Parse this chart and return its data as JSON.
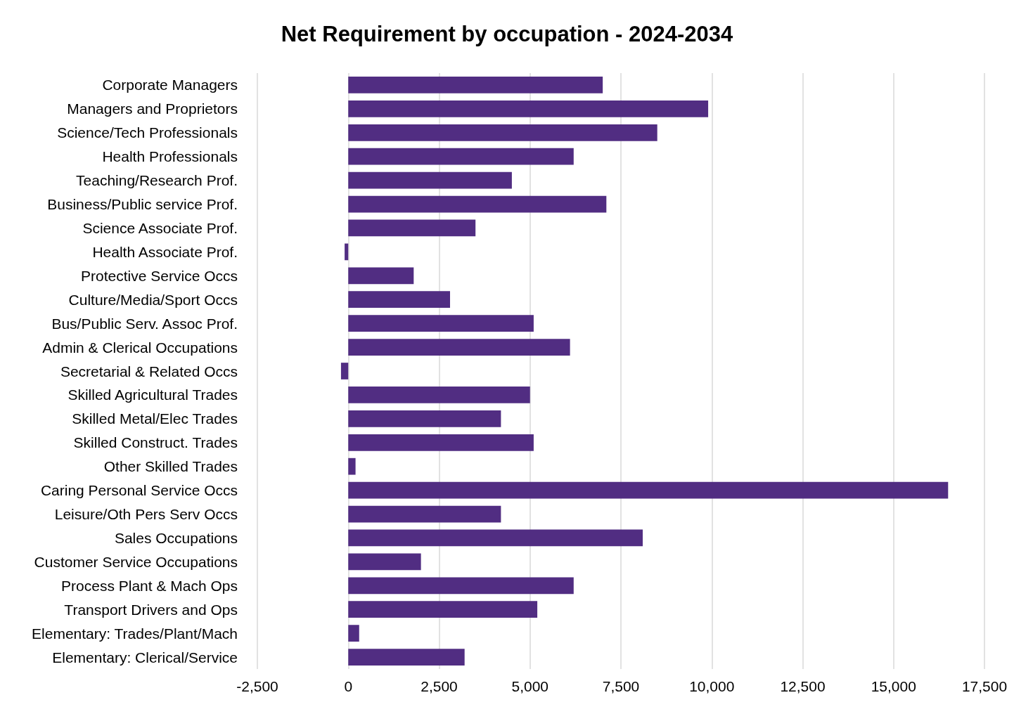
{
  "chart_data": {
    "type": "bar",
    "orientation": "horizontal",
    "title": "Net Requirement by occupation - 2024-2034",
    "categories": [
      "Corporate Managers",
      "Managers and Proprietors",
      "Science/Tech Professionals",
      "Health Professionals",
      "Teaching/Research Prof.",
      "Business/Public service Prof.",
      "Science Associate Prof.",
      "Health Associate Prof.",
      "Protective Service Occs",
      "Culture/Media/Sport Occs",
      "Bus/Public Serv. Assoc Prof.",
      "Admin & Clerical Occupations",
      "Secretarial & Related Occs",
      "Skilled Agricultural Trades",
      "Skilled Metal/Elec Trades",
      "Skilled Construct. Trades",
      "Other Skilled Trades",
      "Caring Personal Service Occs",
      "Leisure/Oth Pers Serv Occs",
      "Sales Occupations",
      "Customer Service Occupations",
      "Process Plant & Mach Ops",
      "Transport Drivers and Ops",
      "Elementary: Trades/Plant/Mach",
      "Elementary: Clerical/Service"
    ],
    "values": [
      7000,
      9900,
      8500,
      6200,
      4500,
      7100,
      3500,
      -100,
      1800,
      2800,
      5100,
      6100,
      -200,
      5000,
      4200,
      5100,
      200,
      16500,
      4200,
      8100,
      2000,
      6200,
      5200,
      300,
      3200
    ],
    "color": "#512d82",
    "xlim": [
      -2500,
      17500
    ],
    "xticks": [
      {
        "value": -2500,
        "label": "-2,500"
      },
      0,
      {
        "value": 2500,
        "label": "2,500"
      },
      {
        "value": 5000,
        "label": "5,000"
      },
      {
        "value": 7500,
        "label": "7,500"
      },
      {
        "value": 10000,
        "label": "10,000"
      },
      {
        "value": 12500,
        "label": "12,500"
      },
      {
        "value": 15000,
        "label": "15,000"
      },
      {
        "value": 17500,
        "label": "17,500"
      }
    ],
    "grid": "x"
  }
}
